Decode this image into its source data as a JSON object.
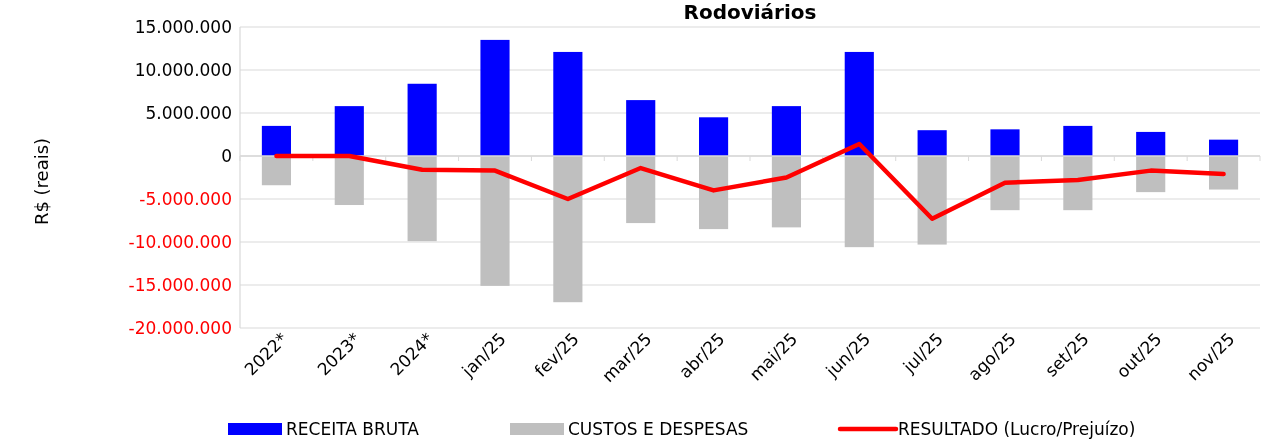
{
  "chart_data": {
    "type": "bar",
    "title": "Rodoviários",
    "ylabel": "R$ (reais)",
    "categories": [
      "2022*",
      "2023*",
      "2024*",
      "jan/25",
      "fev/25",
      "mar/25",
      "abr/25",
      "mai/25",
      "jun/25",
      "jul/25",
      "ago/25",
      "set/25",
      "out/25",
      "nov/25"
    ],
    "series": [
      {
        "name": "RECEITA BRUTA",
        "color": "#0000ff",
        "values": [
          3500000,
          5800000,
          8400000,
          13500000,
          12100000,
          6500000,
          4500000,
          5800000,
          12100000,
          3000000,
          3100000,
          3500000,
          2800000,
          1900000
        ]
      },
      {
        "name": "CUSTOS E DESPESAS",
        "color": "#bfbfbf",
        "values": [
          -3400000,
          -5700000,
          -9900000,
          -15100000,
          -17000000,
          -7800000,
          -8500000,
          -8300000,
          -10600000,
          -10300000,
          -6300000,
          -6300000,
          -4200000,
          -3900000
        ]
      },
      {
        "name": "RESULTADO (Lucro/Prejuízo)",
        "type": "line",
        "color": "#ff0000",
        "values": [
          0,
          0,
          -1600000,
          -1700000,
          -5000000,
          -1400000,
          -4000000,
          -2500000,
          1400000,
          -7300000,
          -3100000,
          -2800000,
          -1700000,
          -2100000
        ]
      }
    ],
    "ylim": [
      -20000000,
      15000000
    ],
    "yticks": [
      {
        "value": -20000000,
        "label": "-20.000.000"
      },
      {
        "value": -15000000,
        "label": "-15.000.000"
      },
      {
        "value": -10000000,
        "label": "-10.000.000"
      },
      {
        "value": -5000000,
        "label": "-5.000.000"
      },
      0,
      {
        "value": 5000000,
        "label": "5.000.000"
      },
      {
        "value": 10000000,
        "label": "10.000.000"
      },
      {
        "value": 15000000,
        "label": "15.000.000"
      }
    ],
    "stacked": true,
    "grid": "y",
    "legend": "bottom",
    "marker": "none",
    "line_style": "solid"
  }
}
